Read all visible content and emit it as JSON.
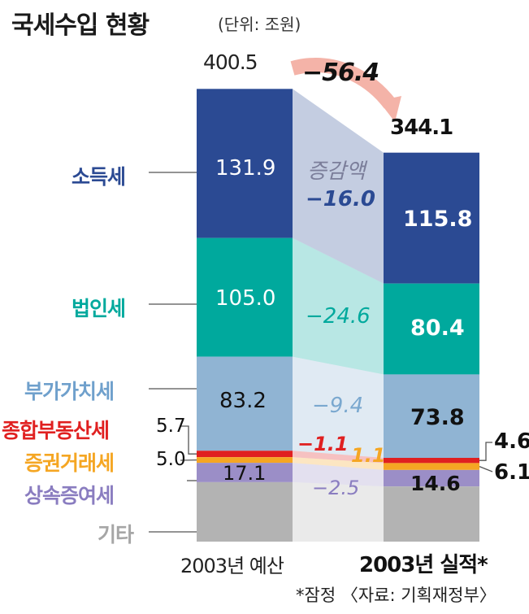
{
  "title": "국세수입 현황",
  "unit": "(단위: 조원)",
  "chart_data": {
    "type": "bar",
    "stacked": true,
    "categories": [
      "2003년 예산",
      "2003년 실적*"
    ],
    "series": [
      {
        "name": "소득세",
        "values": [
          131.9,
          115.8
        ],
        "diff": "−16.0",
        "color": "#2b4a93"
      },
      {
        "name": "법인세",
        "values": [
          105.0,
          80.4
        ],
        "diff": "−24.6",
        "color": "#00a99d"
      },
      {
        "name": "부가가치세",
        "values": [
          83.2,
          73.8
        ],
        "diff": "−9.4",
        "color": "#90b4d3"
      },
      {
        "name": "종합부동산세",
        "values": [
          5.7,
          4.6
        ],
        "diff": "−1.1",
        "color": "#e02020"
      },
      {
        "name": "증권거래세",
        "values": [
          5.0,
          6.1
        ],
        "diff": "1.1",
        "color": "#f5a623"
      },
      {
        "name": "상속증여세",
        "values": [
          17.1,
          14.6
        ],
        "diff": "−2.5",
        "color": "#9b8ec7"
      },
      {
        "name": "기타",
        "values": [
          52.6,
          48.8
        ],
        "diff": "",
        "color": "#b3b3b3"
      }
    ],
    "totals": [
      400.5,
      344.1
    ],
    "total_diff": "−56.4",
    "diff_label": "증감액"
  },
  "value_labels": {
    "budget": [
      "131.9",
      "105.0",
      "83.2",
      "5.7",
      "5.0",
      "17.1"
    ],
    "actual": [
      "115.8",
      "80.4",
      "73.8",
      "4.6",
      "6.1",
      "14.6"
    ],
    "total_budget": "400.5",
    "total_actual": "344.1"
  },
  "footnote": "*잠정 〈자료: 기획재정부〉"
}
